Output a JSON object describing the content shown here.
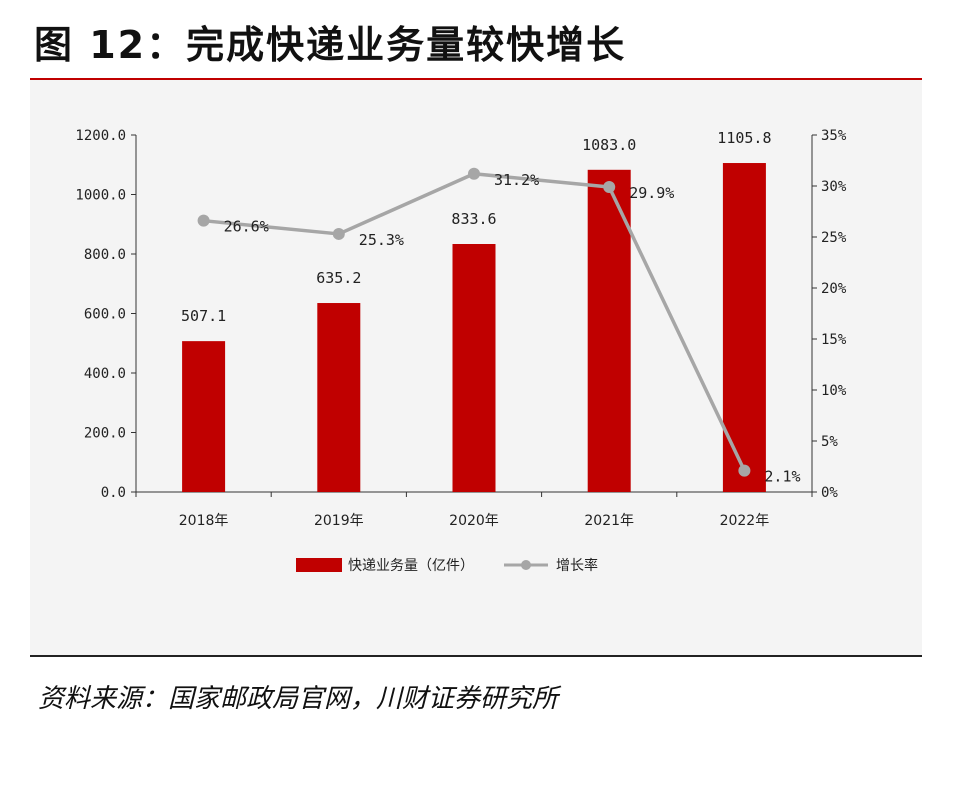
{
  "page": {
    "title": "图 12：完成快递业务量较快增长",
    "source": "资料来源：国家邮政局官网，川财证券研究所"
  },
  "colors": {
    "bar": "#c00000",
    "line": "#a6a6a6",
    "marker": "#a6a6a6",
    "accent_rule": "#c00000"
  },
  "chart_data": {
    "type": "bar",
    "title": "完成快递业务量较快增长",
    "categories": [
      "2018年",
      "2019年",
      "2020年",
      "2021年",
      "2022年"
    ],
    "series": [
      {
        "name": "快递业务量（亿件）",
        "type": "bar",
        "axis": "left",
        "values": [
          507.1,
          635.2,
          833.6,
          1083.0,
          1105.8
        ],
        "labels": [
          "507.1",
          "635.2",
          "833.6",
          "1083.0",
          "1105.8"
        ]
      },
      {
        "name": "增长率",
        "type": "line",
        "axis": "right",
        "values": [
          26.6,
          25.3,
          31.2,
          29.9,
          2.1
        ],
        "labels": [
          "26.6%",
          "25.3%",
          "31.2%",
          "29.9%",
          "2.1%"
        ]
      }
    ],
    "y_left": {
      "min": 0,
      "max": 1200,
      "ticks": [
        0,
        200,
        400,
        600,
        800,
        1000,
        1200
      ],
      "tick_labels": [
        "0.0",
        "200.0",
        "400.0",
        "600.0",
        "800.0",
        "1000.0",
        "1200.0"
      ]
    },
    "y_right": {
      "min": 0,
      "max": 35,
      "ticks": [
        0,
        5,
        10,
        15,
        20,
        25,
        30,
        35
      ],
      "tick_labels": [
        "0%",
        "5%",
        "10%",
        "15%",
        "20%",
        "25%",
        "30%",
        "35%"
      ]
    },
    "legend": {
      "position": "bottom",
      "entries": [
        "快递业务量（亿件）",
        "增长率"
      ]
    },
    "grid": false
  }
}
